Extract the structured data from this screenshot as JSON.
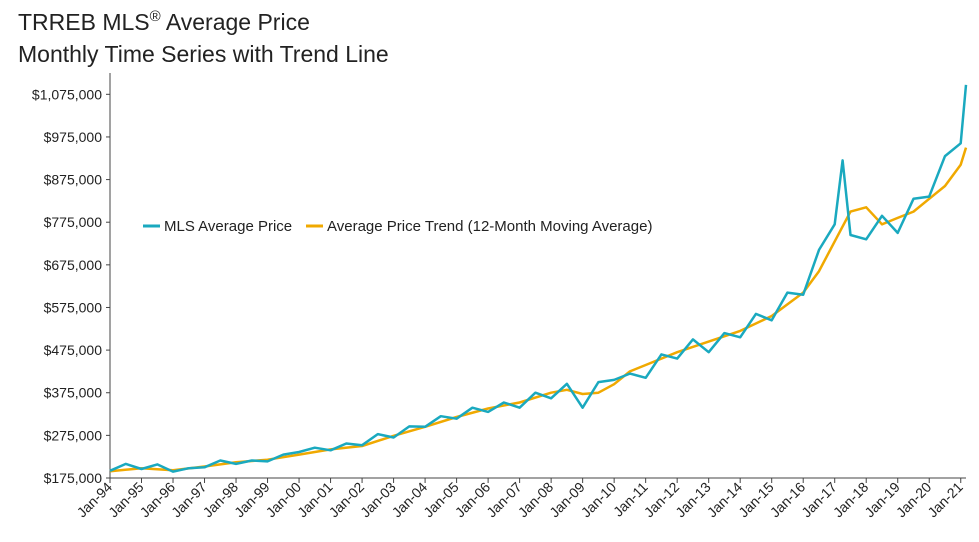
{
  "title": {
    "line1_prefix": "TRREB MLS",
    "line1_sup": "®",
    "line1_suffix": " Average Price",
    "line2": "Monthly Time Series with Trend Line"
  },
  "colors": {
    "series": "#1aa9bf",
    "trend": "#f0a900",
    "axis": "#444444"
  },
  "chart_data": {
    "type": "line",
    "title": "TRREB MLS® Average Price",
    "subtitle": "Monthly Time Series with Trend Line",
    "xlabel": "",
    "ylabel": "",
    "x_range": [
      "Jan-94",
      "Mar-21"
    ],
    "ylim": [
      175000,
      1125000
    ],
    "grid": false,
    "legend_position": "center-left",
    "y_ticks": [
      "$175,000",
      "$275,000",
      "$375,000",
      "$475,000",
      "$575,000",
      "$675,000",
      "$775,000",
      "$875,000",
      "$975,000",
      "$1,075,000"
    ],
    "x_ticks": [
      "Jan-94",
      "Jan-95",
      "Jan-96",
      "Jan-97",
      "Jan-98",
      "Jan-99",
      "Jan-00",
      "Jan-01",
      "Jan-02",
      "Jan-03",
      "Jan-04",
      "Jan-05",
      "Jan-06",
      "Jan-07",
      "Jan-08",
      "Jan-09",
      "Jan-10",
      "Jan-11",
      "Jan-12",
      "Jan-13",
      "Jan-14",
      "Jan-15",
      "Jan-16",
      "Jan-17",
      "Jan-18",
      "Jan-19",
      "Jan-20",
      "Jan-21"
    ],
    "series": [
      {
        "name": "MLS Average Price",
        "points": [
          [
            "Jan-94",
            192000
          ],
          [
            "Jul-94",
            208000
          ],
          [
            "Jan-95",
            196000
          ],
          [
            "Jul-95",
            207000
          ],
          [
            "Jan-96",
            190000
          ],
          [
            "Jul-96",
            198000
          ],
          [
            "Jan-97",
            200000
          ],
          [
            "Jul-97",
            216000
          ],
          [
            "Jan-98",
            208000
          ],
          [
            "Jul-98",
            216000
          ],
          [
            "Jan-99",
            214000
          ],
          [
            "Jul-99",
            230000
          ],
          [
            "Jan-00",
            236000
          ],
          [
            "Jul-00",
            246000
          ],
          [
            "Jan-01",
            240000
          ],
          [
            "Jul-01",
            256000
          ],
          [
            "Jan-02",
            252000
          ],
          [
            "Jul-02",
            278000
          ],
          [
            "Jan-03",
            270000
          ],
          [
            "Jul-03",
            296000
          ],
          [
            "Jan-04",
            295000
          ],
          [
            "Jul-04",
            320000
          ],
          [
            "Jan-05",
            314000
          ],
          [
            "Jul-05",
            340000
          ],
          [
            "Jan-06",
            330000
          ],
          [
            "Jul-06",
            352000
          ],
          [
            "Jan-07",
            340000
          ],
          [
            "Jul-07",
            375000
          ],
          [
            "Jan-08",
            362000
          ],
          [
            "Jul-08",
            396000
          ],
          [
            "Jan-09",
            340000
          ],
          [
            "Jul-09",
            400000
          ],
          [
            "Jan-10",
            405000
          ],
          [
            "Jul-10",
            420000
          ],
          [
            "Jan-11",
            410000
          ],
          [
            "Jul-11",
            465000
          ],
          [
            "Jan-12",
            455000
          ],
          [
            "Jul-12",
            500000
          ],
          [
            "Jan-13",
            470000
          ],
          [
            "Jul-13",
            515000
          ],
          [
            "Jan-14",
            505000
          ],
          [
            "Jul-14",
            560000
          ],
          [
            "Jan-15",
            545000
          ],
          [
            "Jul-15",
            610000
          ],
          [
            "Jan-16",
            605000
          ],
          [
            "Jul-16",
            710000
          ],
          [
            "Jan-17",
            770000
          ],
          [
            "Apr-17",
            920000
          ],
          [
            "Jul-17",
            745000
          ],
          [
            "Jan-18",
            735000
          ],
          [
            "Jul-18",
            790000
          ],
          [
            "Jan-19",
            750000
          ],
          [
            "Jul-19",
            830000
          ],
          [
            "Jan-20",
            835000
          ],
          [
            "Jul-20",
            930000
          ],
          [
            "Jan-21",
            960000
          ],
          [
            "Mar-21",
            1097000
          ]
        ]
      },
      {
        "name": "Average Price Trend (12-Month Moving Average)",
        "points": [
          [
            "Jan-94",
            191000
          ],
          [
            "Jan-95",
            198000
          ],
          [
            "Jan-96",
            193000
          ],
          [
            "Jan-97",
            202000
          ],
          [
            "Jan-98",
            212000
          ],
          [
            "Jan-99",
            218000
          ],
          [
            "Jan-00",
            230000
          ],
          [
            "Jan-01",
            242000
          ],
          [
            "Jan-02",
            250000
          ],
          [
            "Jan-03",
            274000
          ],
          [
            "Jan-04",
            295000
          ],
          [
            "Jan-05",
            318000
          ],
          [
            "Jan-06",
            338000
          ],
          [
            "Jan-07",
            352000
          ],
          [
            "Jan-08",
            375000
          ],
          [
            "Jul-08",
            382000
          ],
          [
            "Jan-09",
            372000
          ],
          [
            "Jul-09",
            375000
          ],
          [
            "Jan-10",
            395000
          ],
          [
            "Jul-10",
            425000
          ],
          [
            "Jan-11",
            440000
          ],
          [
            "Jan-12",
            470000
          ],
          [
            "Jan-13",
            495000
          ],
          [
            "Jan-14",
            520000
          ],
          [
            "Jan-15",
            555000
          ],
          [
            "Jan-16",
            610000
          ],
          [
            "Jul-16",
            660000
          ],
          [
            "Jan-17",
            730000
          ],
          [
            "Jul-17",
            800000
          ],
          [
            "Jan-18",
            810000
          ],
          [
            "Jul-18",
            770000
          ],
          [
            "Jan-19",
            785000
          ],
          [
            "Jul-19",
            800000
          ],
          [
            "Jan-20",
            830000
          ],
          [
            "Jul-20",
            860000
          ],
          [
            "Jan-21",
            910000
          ],
          [
            "Mar-21",
            950000
          ]
        ]
      }
    ]
  }
}
